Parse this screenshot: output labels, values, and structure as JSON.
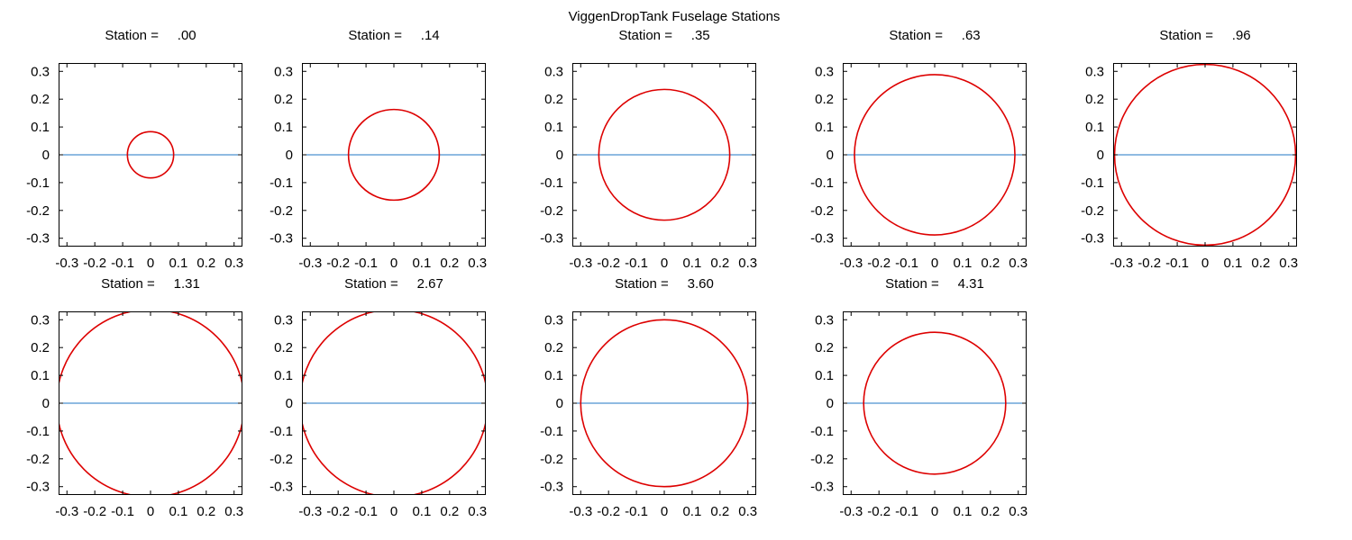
{
  "figure_title": "ViggenDropTank Fuselage Stations",
  "colors": {
    "section": "#dd0000",
    "centerline": "#1f77c4",
    "axes": "#000000",
    "background": "#ffffff"
  },
  "chart_data": [
    {
      "type": "line",
      "title": "Station =     .00",
      "station": ".00",
      "radius": 0.083,
      "xlim": [
        -0.33,
        0.33
      ],
      "ylim": [
        -0.33,
        0.33
      ],
      "xticks": [
        "-0.3",
        "-0.2",
        "-0.1",
        "0",
        "0.1",
        "0.2",
        "0.3"
      ],
      "yticks": [
        "0.3",
        "0.2",
        "0.1",
        "0",
        "-0.1",
        "-0.2",
        "-0.3"
      ]
    },
    {
      "type": "line",
      "title": "Station =     .14",
      "station": ".14",
      "radius": 0.163,
      "xlim": [
        -0.33,
        0.33
      ],
      "ylim": [
        -0.33,
        0.33
      ],
      "xticks": [
        "-0.3",
        "-0.2",
        "-0.1",
        "0",
        "0.1",
        "0.2",
        "0.3"
      ],
      "yticks": [
        "0.3",
        "0.2",
        "0.1",
        "0",
        "-0.1",
        "-0.2",
        "-0.3"
      ]
    },
    {
      "type": "line",
      "title": "Station =     .35",
      "station": ".35",
      "radius": 0.235,
      "xlim": [
        -0.33,
        0.33
      ],
      "ylim": [
        -0.33,
        0.33
      ],
      "xticks": [
        "-0.3",
        "-0.2",
        "-0.1",
        "0",
        "0.1",
        "0.2",
        "0.3"
      ],
      "yticks": [
        "0.3",
        "0.2",
        "0.1",
        "0",
        "-0.1",
        "-0.2",
        "-0.3"
      ]
    },
    {
      "type": "line",
      "title": "Station =     .63",
      "station": ".63",
      "radius": 0.288,
      "xlim": [
        -0.33,
        0.33
      ],
      "ylim": [
        -0.33,
        0.33
      ],
      "xticks": [
        "-0.3",
        "-0.2",
        "-0.1",
        "0",
        "0.1",
        "0.2",
        "0.3"
      ],
      "yticks": [
        "0.3",
        "0.2",
        "0.1",
        "0",
        "-0.1",
        "-0.2",
        "-0.3"
      ]
    },
    {
      "type": "line",
      "title": "Station =     .96",
      "station": ".96",
      "radius": 0.325,
      "xlim": [
        -0.33,
        0.33
      ],
      "ylim": [
        -0.33,
        0.33
      ],
      "xticks": [
        "-0.3",
        "-0.2",
        "-0.1",
        "0",
        "0.1",
        "0.2",
        "0.3"
      ],
      "yticks": [
        "0.3",
        "0.2",
        "0.1",
        "0",
        "-0.1",
        "-0.2",
        "-0.3"
      ]
    },
    {
      "type": "line",
      "title": "Station =     1.31",
      "station": "1.31",
      "radius": 0.337,
      "xlim": [
        -0.33,
        0.33
      ],
      "ylim": [
        -0.33,
        0.33
      ],
      "xticks": [
        "-0.3",
        "-0.2",
        "-0.1",
        "0",
        "0.1",
        "0.2",
        "0.3"
      ],
      "yticks": [
        "0.3",
        "0.2",
        "0.1",
        "0",
        "-0.1",
        "-0.2",
        "-0.3"
      ]
    },
    {
      "type": "line",
      "title": "Station =     2.67",
      "station": "2.67",
      "radius": 0.337,
      "xlim": [
        -0.33,
        0.33
      ],
      "ylim": [
        -0.33,
        0.33
      ],
      "xticks": [
        "-0.3",
        "-0.2",
        "-0.1",
        "0",
        "0.1",
        "0.2",
        "0.3"
      ],
      "yticks": [
        "0.3",
        "0.2",
        "0.1",
        "0",
        "-0.1",
        "-0.2",
        "-0.3"
      ]
    },
    {
      "type": "line",
      "title": "Station =     3.60",
      "station": "3.60",
      "radius": 0.3,
      "xlim": [
        -0.33,
        0.33
      ],
      "ylim": [
        -0.33,
        0.33
      ],
      "xticks": [
        "-0.3",
        "-0.2",
        "-0.1",
        "0",
        "0.1",
        "0.2",
        "0.3"
      ],
      "yticks": [
        "0.3",
        "0.2",
        "0.1",
        "0",
        "-0.1",
        "-0.2",
        "-0.3"
      ]
    },
    {
      "type": "line",
      "title": "Station =     4.31",
      "station": "4.31",
      "radius": 0.255,
      "xlim": [
        -0.33,
        0.33
      ],
      "ylim": [
        -0.33,
        0.33
      ],
      "xticks": [
        "-0.3",
        "-0.2",
        "-0.1",
        "0",
        "0.1",
        "0.2",
        "0.3"
      ],
      "yticks": [
        "0.3",
        "0.2",
        "0.1",
        "0",
        "-0.1",
        "-0.2",
        "-0.3"
      ]
    }
  ]
}
